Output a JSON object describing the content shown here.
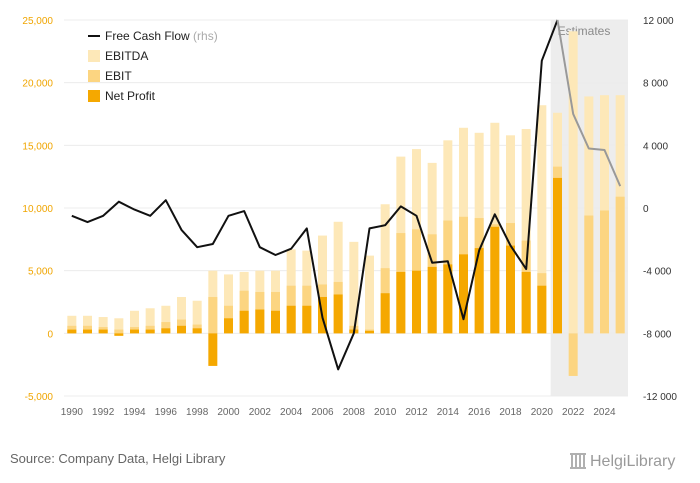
{
  "chart_data": {
    "type": "bar",
    "x": [
      1990,
      1991,
      1992,
      1993,
      1994,
      1995,
      1996,
      1997,
      1998,
      1999,
      2000,
      2001,
      2002,
      2003,
      2004,
      2005,
      2006,
      2007,
      2008,
      2009,
      2010,
      2011,
      2012,
      2013,
      2014,
      2015,
      2016,
      2017,
      2018,
      2019,
      2020,
      2021,
      2022,
      2023,
      2024,
      2025
    ],
    "x_ticks": [
      1990,
      1992,
      1994,
      1996,
      1998,
      2000,
      2002,
      2004,
      2006,
      2008,
      2010,
      2012,
      2014,
      2016,
      2018,
      2020,
      2022,
      2024
    ],
    "left_axis": {
      "min": -5000,
      "max": 25000,
      "ticks": [
        -5000,
        0,
        5000,
        10000,
        15000,
        20000,
        25000
      ],
      "tick_labels": [
        "-5,000",
        "0",
        "5,000",
        "10,000",
        "15,000",
        "20,000",
        "25,000"
      ],
      "color": "#f0a500"
    },
    "right_axis": {
      "min": -12000,
      "max": 12000,
      "ticks": [
        -12000,
        -8000,
        -4000,
        0,
        4000,
        8000,
        12000
      ],
      "tick_labels": [
        "-12 000",
        "-8 000",
        "-4 000",
        "0",
        "4 000",
        "8 000",
        "12 000"
      ]
    },
    "series": [
      {
        "name": "EBITDA",
        "axis": "left",
        "color": "#fde8b8",
        "values": [
          1400,
          1400,
          1300,
          1200,
          1800,
          2000,
          2200,
          2900,
          2600,
          5000,
          4700,
          4900,
          5000,
          5000,
          6700,
          6600,
          7800,
          8900,
          7300,
          6200,
          10300,
          14100,
          14700,
          13600,
          15400,
          16400,
          16000,
          16800,
          15800,
          16300,
          18200,
          17600,
          24100,
          18900,
          19000,
          19000
        ]
      },
      {
        "name": "EBIT",
        "axis": "left",
        "color": "#fcd581",
        "values": [
          600,
          600,
          500,
          300,
          500,
          600,
          900,
          1100,
          700,
          2900,
          2200,
          3400,
          3300,
          3300,
          3800,
          3800,
          3900,
          4100,
          600,
          300,
          5200,
          8000,
          8300,
          7900,
          9000,
          9300,
          9200,
          8700,
          8800,
          7400,
          4800,
          13300,
          -3400,
          9400,
          9800,
          10900
        ]
      },
      {
        "name": "Net Profit",
        "axis": "left",
        "color": "#f5a800",
        "values": [
          300,
          300,
          300,
          -200,
          300,
          300,
          400,
          600,
          400,
          -2600,
          1200,
          1800,
          1900,
          1800,
          2200,
          2200,
          2900,
          3100,
          300,
          200,
          3200,
          4900,
          5000,
          5300,
          5500,
          6300,
          6800,
          8500,
          7000,
          4900,
          3800,
          12400,
          null,
          null,
          null,
          null
        ]
      },
      {
        "name": "Free Cash Flow",
        "axis": "right",
        "type": "line",
        "color": "#111111",
        "estimate_color": "#999999",
        "values": [
          -500,
          -900,
          -500,
          400,
          -100,
          -500,
          500,
          -1400,
          -2500,
          -2300,
          -500,
          -200,
          -2500,
          -3000,
          -2600,
          -1300,
          -7000,
          -10300,
          -8000,
          -1300,
          -1100,
          100,
          -500,
          -3500,
          -3400,
          -7100,
          -2700,
          -400,
          -2400,
          -3900,
          9400,
          12000,
          6000,
          3800,
          3700,
          1400
        ]
      }
    ],
    "legend": [
      {
        "label": "Free Cash Flow",
        "sub": "(rhs)"
      },
      {
        "label": "EBITDA"
      },
      {
        "label": "EBIT"
      },
      {
        "label": "Net Profit"
      }
    ],
    "estimates": {
      "label": "Estimates",
      "from": 2021,
      "to": 2025
    }
  },
  "source": "Source: Company Data, Helgi Library",
  "logo": "HelgiLibrary"
}
